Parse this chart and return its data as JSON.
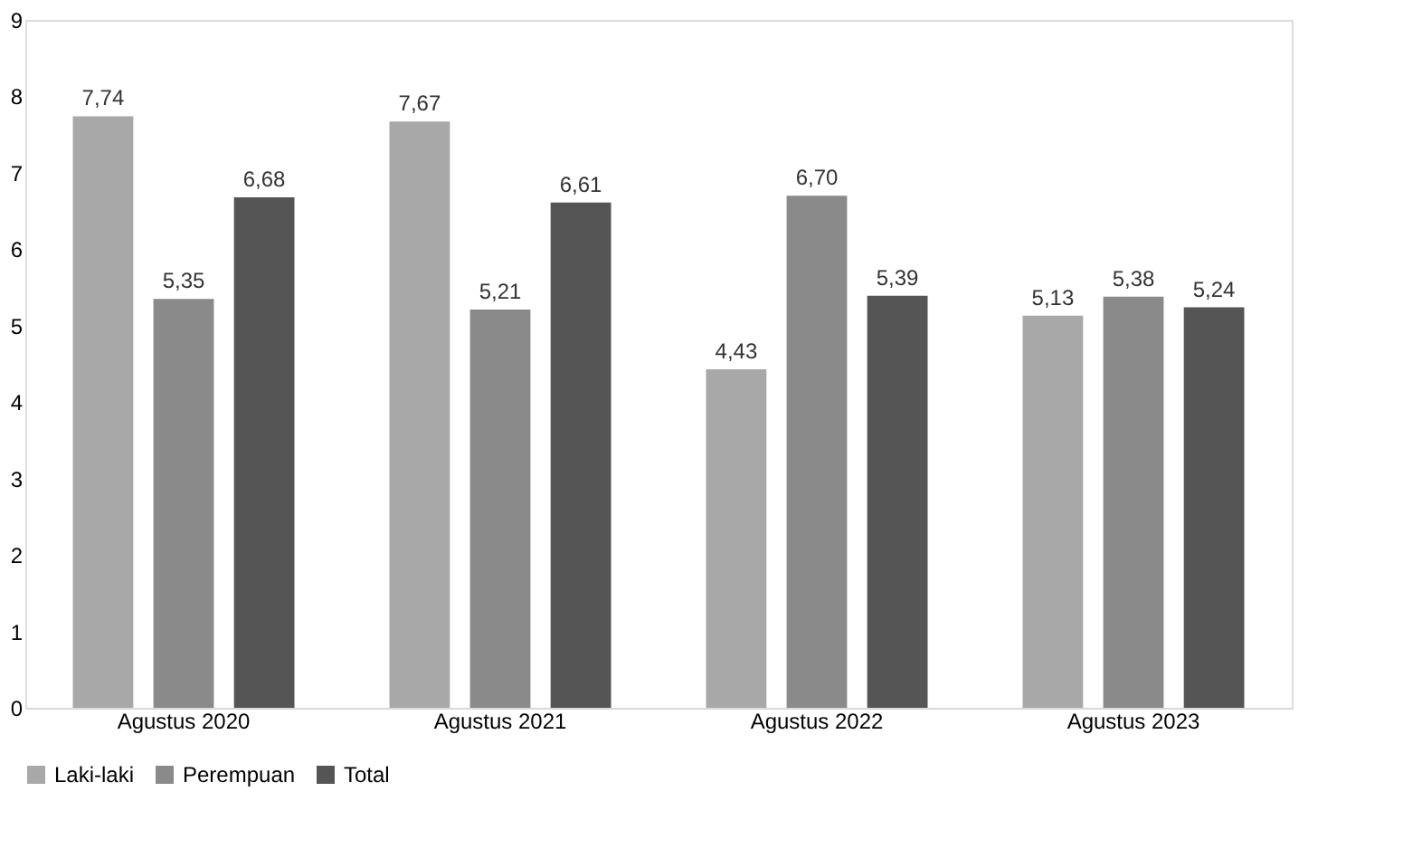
{
  "chart_data": {
    "type": "bar",
    "categories": [
      "Agustus 2020",
      "Agustus 2021",
      "Agustus 2022",
      "Agustus 2023"
    ],
    "series": [
      {
        "name": "Laki-laki",
        "color": "#a8a8a8",
        "values": [
          7.74,
          7.67,
          4.43,
          5.13
        ],
        "value_labels": [
          "7,74",
          "7,67",
          "4,43",
          "5,13"
        ]
      },
      {
        "name": "Perempuan",
        "color": "#8a8a8a",
        "values": [
          5.35,
          5.21,
          6.7,
          5.38
        ],
        "value_labels": [
          "5,35",
          "5,21",
          "6,70",
          "5,38"
        ]
      },
      {
        "name": "Total",
        "color": "#555555",
        "values": [
          6.68,
          6.61,
          5.39,
          5.24
        ],
        "value_labels": [
          "6,68",
          "6,61",
          "5,39",
          "5,24"
        ]
      }
    ],
    "ylim": [
      0,
      9
    ],
    "yticks": [
      0,
      1,
      2,
      3,
      4,
      5,
      6,
      7,
      8,
      9
    ],
    "grid": false,
    "legend": "bottom"
  }
}
